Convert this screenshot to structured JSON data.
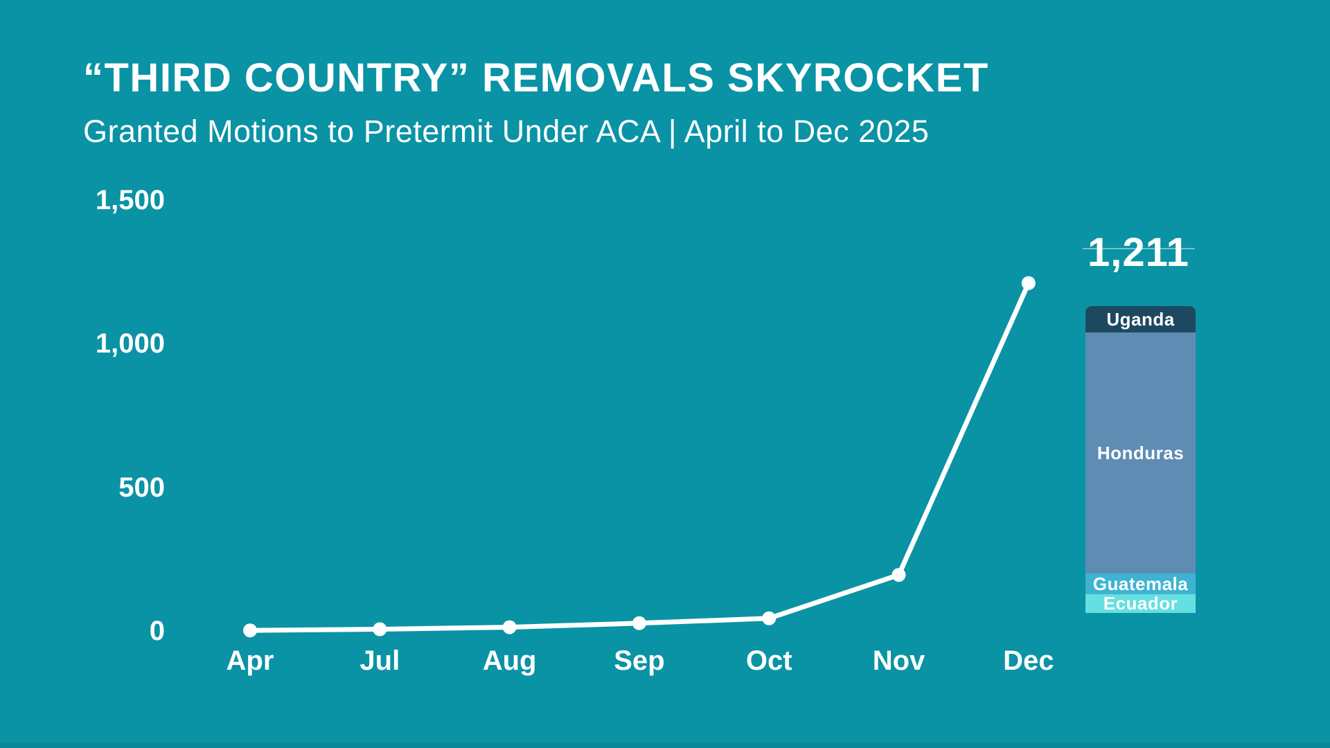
{
  "header": {
    "title": "“THIRD COUNTRY” REMOVALS SKYROCKET",
    "subtitle": "Granted Motions to Pretermit Under ACA | April to Dec 2025"
  },
  "chart_data": {
    "type": "line",
    "title": "“THIRD COUNTRY” REMOVALS SKYROCKET",
    "subtitle": "Granted Motions to Pretermit Under ACA | April to Dec 2025",
    "x": [
      "Apr",
      "Jul",
      "Aug",
      "Sep",
      "Oct",
      "Nov",
      "Dec"
    ],
    "values": [
      2,
      6,
      13,
      27,
      44,
      195,
      1211
    ],
    "ylim": [
      0,
      1500
    ],
    "y_ticks": [
      0,
      500,
      1000,
      1500
    ],
    "y_tick_labels": [
      "0",
      "500",
      "1,000",
      "1,500"
    ],
    "grid": false,
    "legend": "none",
    "line_color": "#ffffff",
    "point_color": "#ffffff",
    "annotation": {
      "total": 1211,
      "total_label": "1,211",
      "breakdown_type": "stacked-bar",
      "breakdown": [
        {
          "name": "Uganda",
          "value": 105,
          "color": "#1c4960"
        },
        {
          "name": "Honduras",
          "value": 950,
          "color": "#5f8cb3"
        },
        {
          "name": "Guatemala",
          "value": 82,
          "color": "#3eb3d2"
        },
        {
          "name": "Ecuador",
          "value": 74,
          "color": "#66dfe0"
        }
      ]
    }
  },
  "colors": {
    "background": "#0a93a5",
    "text": "#ffffff",
    "line": "#ffffff",
    "reference_rule": "#d7e8ec",
    "bottom_strip": "#0b879a"
  }
}
